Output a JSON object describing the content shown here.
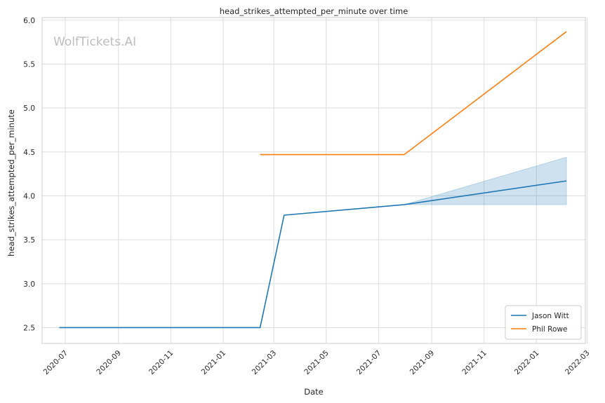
{
  "chart_data": {
    "type": "line",
    "title": "head_strikes_attempted_per_minute over time",
    "xlabel": "Date",
    "ylabel": "head_strikes_attempted_per_minute",
    "watermark": "WolfTickets.AI",
    "x_axis_type": "date",
    "xlim": [
      "2020-06-04",
      "2022-02-27"
    ],
    "ylim": [
      2.32,
      6.03
    ],
    "x_ticks": [
      "2020-07",
      "2020-09",
      "2020-11",
      "2021-01",
      "2021-03",
      "2021-05",
      "2021-07",
      "2021-09",
      "2021-11",
      "2022-01",
      "2022-03"
    ],
    "y_ticks": [
      "2.5",
      "3.0",
      "3.5",
      "4.0",
      "4.5",
      "5.0",
      "5.5",
      "6.0"
    ],
    "grid": true,
    "legend_position": "bottom-right",
    "series": [
      {
        "name": "Jason Witt",
        "color": "#1f77b4",
        "points": [
          {
            "x": "2020-06-24",
            "y": 2.5
          },
          {
            "x": "2021-02-13",
            "y": 2.5
          },
          {
            "x": "2021-03-13",
            "y": 3.78
          },
          {
            "x": "2021-07-31",
            "y": 3.9
          },
          {
            "x": "2022-02-05",
            "y": 4.17
          }
        ],
        "band": [
          {
            "x": "2021-07-31",
            "low": 3.9,
            "high": 3.9
          },
          {
            "x": "2022-02-05",
            "low": 3.9,
            "high": 4.44
          }
        ]
      },
      {
        "name": "Phil Rowe",
        "color": "#ff7f0e",
        "points": [
          {
            "x": "2021-02-13",
            "y": 4.47
          },
          {
            "x": "2021-07-31",
            "y": 4.47
          },
          {
            "x": "2022-02-05",
            "y": 5.87
          }
        ]
      }
    ]
  }
}
